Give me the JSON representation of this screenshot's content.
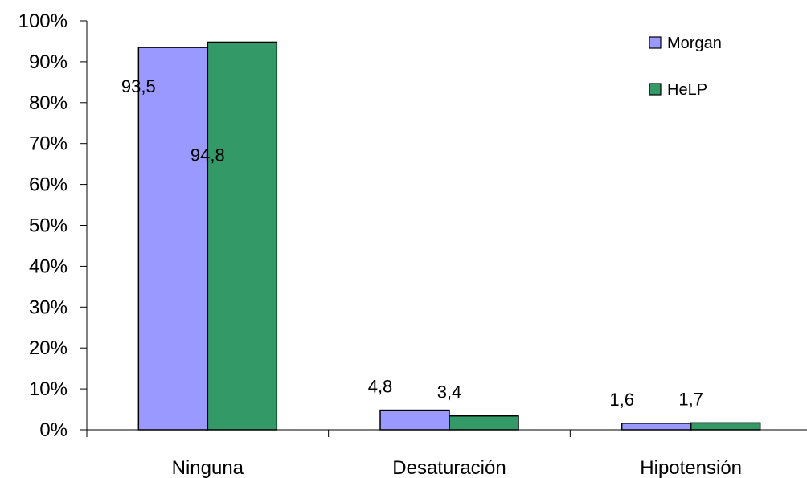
{
  "chart_data": {
    "type": "bar",
    "categories": [
      "Ninguna",
      "Desaturación",
      "Hipotensión"
    ],
    "series": [
      {
        "name": "Morgan",
        "values": [
          93.5,
          4.8,
          1.6
        ],
        "labels": [
          "93,5",
          "4,8",
          "1,6"
        ],
        "color": "#9999ff"
      },
      {
        "name": "HeLP",
        "values": [
          94.8,
          3.4,
          1.7
        ],
        "labels": [
          "94,8",
          "3,4",
          "1,7"
        ],
        "color": "#339966"
      }
    ],
    "ylim": [
      0,
      100
    ],
    "yticks": [
      "0%",
      "10%",
      "20%",
      "30%",
      "40%",
      "50%",
      "60%",
      "70%",
      "80%",
      "90%",
      "100%"
    ],
    "legend_position": "top-right",
    "grid": false
  }
}
